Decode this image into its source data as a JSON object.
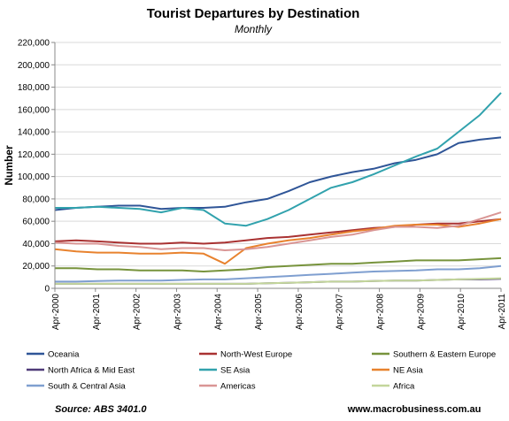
{
  "chart_data": {
    "type": "line",
    "title": "Tourist Departures by Destination",
    "subtitle": "Monthly",
    "ylabel": "Number",
    "xlabel": "",
    "x_tick_labels": [
      "Apr-2000",
      "Apr-2001",
      "Apr-2002",
      "Apr-2003",
      "Apr-2004",
      "Apr-2005",
      "Apr-2006",
      "Apr-2007",
      "Apr-2008",
      "Apr-2009",
      "Apr-2010",
      "Apr-2011"
    ],
    "x_range": [
      "Apr-2000",
      "Apr-2011"
    ],
    "y_ticks": [
      0,
      20000,
      40000,
      60000,
      80000,
      100000,
      120000,
      140000,
      160000,
      180000,
      200000,
      220000
    ],
    "y_tick_labels": [
      "0",
      "20,000",
      "40,000",
      "60,000",
      "80,000",
      "100,000",
      "120,000",
      "140,000",
      "160,000",
      "180,000",
      "200,000",
      "220,000"
    ],
    "ylim": [
      0,
      220000
    ],
    "grid": "horizontal",
    "legend_position": "bottom",
    "source": "Source: ABS 3401.0",
    "website": "www.macrobusiness.com.au",
    "series": [
      {
        "name": "Oceania",
        "color": "#2F5597",
        "values": [
          70000,
          72000,
          73000,
          74000,
          74000,
          71000,
          72000,
          72000,
          73000,
          77000,
          80000,
          87000,
          95000,
          100000,
          104000,
          107000,
          112000,
          115000,
          120000,
          130000,
          133000,
          135000
        ]
      },
      {
        "name": "North-West Europe",
        "color": "#A93232",
        "values": [
          42000,
          43000,
          42000,
          41000,
          40000,
          40000,
          41000,
          40000,
          41000,
          43000,
          45000,
          46000,
          48000,
          50000,
          52000,
          54000,
          55000,
          57000,
          58000,
          58000,
          60000,
          62000
        ]
      },
      {
        "name": "Southern & Eastern Europe",
        "color": "#77933C",
        "values": [
          18000,
          18000,
          17000,
          17000,
          16000,
          16000,
          16000,
          15000,
          16000,
          17000,
          19000,
          20000,
          21000,
          22000,
          22000,
          23000,
          24000,
          25000,
          25000,
          25000,
          26000,
          27000
        ]
      },
      {
        "name": "North Africa & Mid East",
        "color": "#4F3A78",
        "values": [
          4000,
          4000,
          4000,
          4000,
          4000,
          4000,
          4000,
          4000,
          4000,
          4000,
          4500,
          5000,
          5500,
          6000,
          6000,
          6500,
          7000,
          7000,
          7500,
          8000,
          8000,
          8500
        ]
      },
      {
        "name": "SE Asia",
        "color": "#31A2AD",
        "values": [
          72000,
          72000,
          73000,
          72000,
          71000,
          68000,
          72000,
          70000,
          58000,
          56000,
          62000,
          70000,
          80000,
          90000,
          95000,
          102000,
          110000,
          118000,
          125000,
          140000,
          155000,
          175000
        ]
      },
      {
        "name": "NE Asia",
        "color": "#E8822E",
        "values": [
          35000,
          33000,
          32000,
          32000,
          31000,
          31000,
          32000,
          31000,
          22000,
          36000,
          40000,
          43000,
          45000,
          48000,
          51000,
          53000,
          56000,
          57000,
          57000,
          55000,
          58000,
          62000
        ]
      },
      {
        "name": "South & Central Asia",
        "color": "#7F9FD0",
        "values": [
          6000,
          6000,
          6500,
          7000,
          7000,
          7000,
          7500,
          8000,
          8000,
          9000,
          10000,
          11000,
          12000,
          13000,
          14000,
          15000,
          15500,
          16000,
          17000,
          17000,
          18000,
          20000
        ]
      },
      {
        "name": "Americas",
        "color": "#D99594",
        "values": [
          41000,
          40000,
          40000,
          38000,
          37000,
          35000,
          36000,
          36000,
          34000,
          35000,
          37000,
          40000,
          43000,
          46000,
          48000,
          52000,
          55000,
          55000,
          54000,
          56000,
          62000,
          68000
        ]
      },
      {
        "name": "Africa",
        "color": "#C3D69B",
        "values": [
          4000,
          4000,
          4000,
          4000,
          4000,
          4000,
          4000,
          4000,
          4000,
          4000,
          4500,
          5000,
          5500,
          6000,
          6000,
          6500,
          7000,
          7000,
          7500,
          8000,
          8500,
          9000
        ]
      }
    ]
  }
}
